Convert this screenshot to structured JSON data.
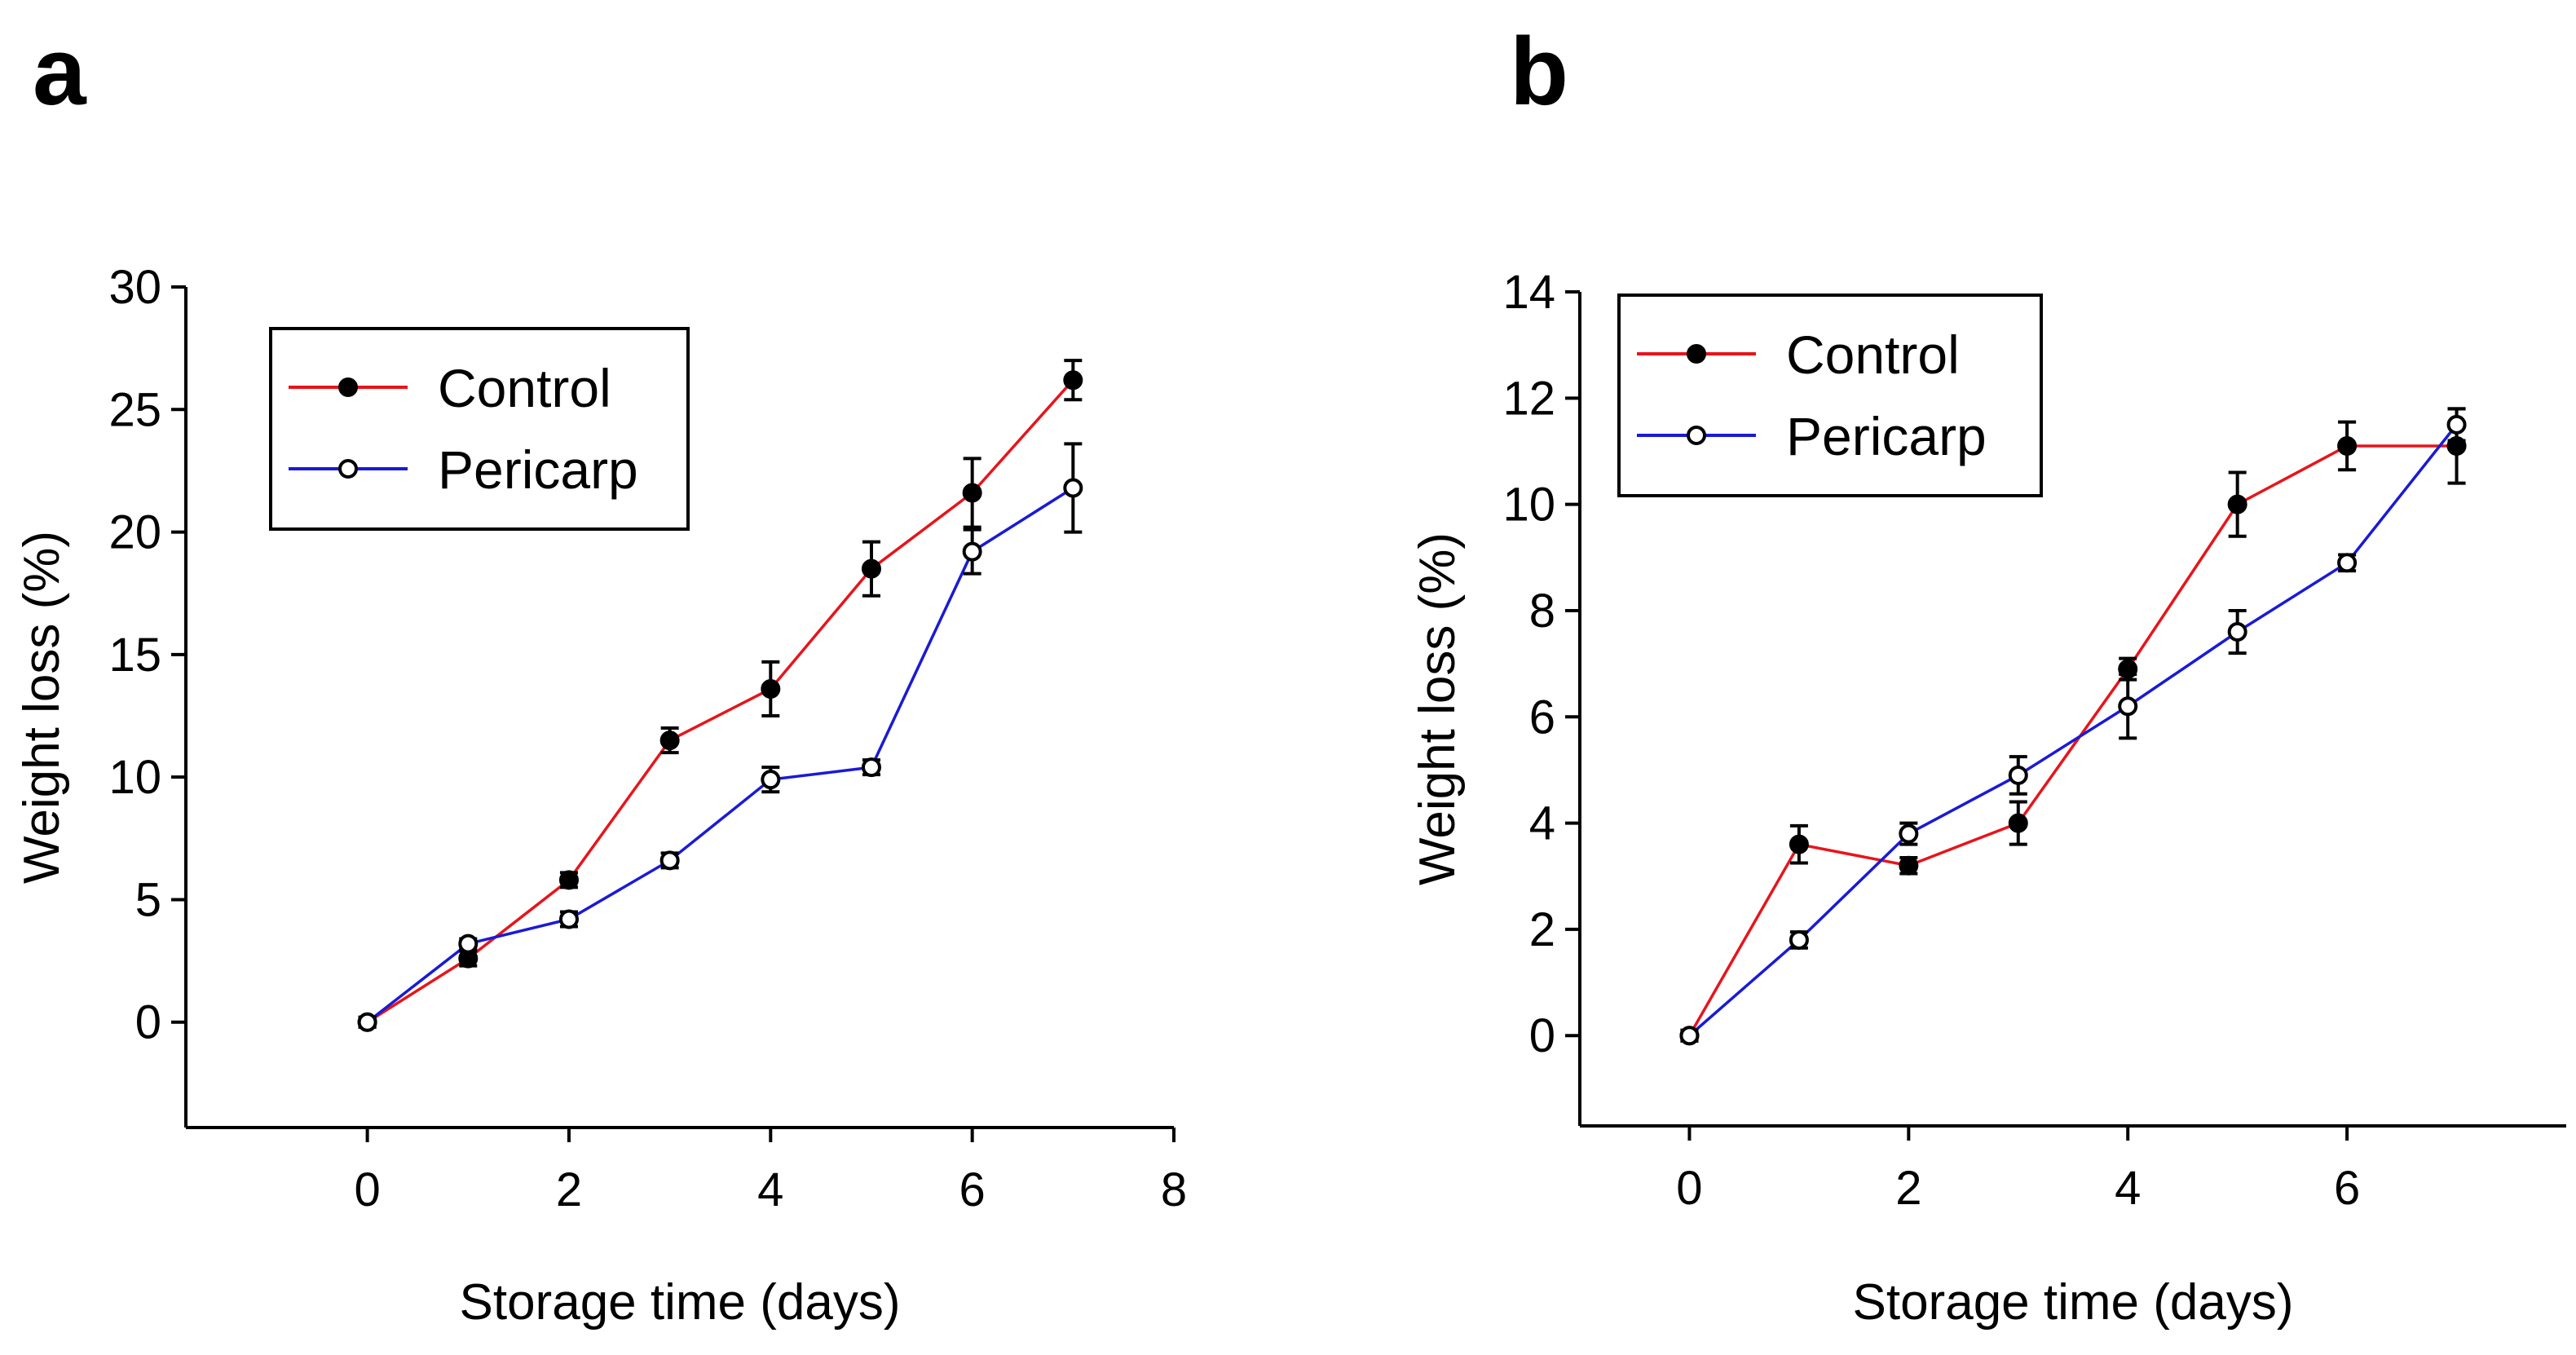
{
  "chart_data": [
    {
      "panel": "a",
      "type": "line",
      "xlabel": "Storage time (days)",
      "ylabel": "Weight loss (%)",
      "xlim": [
        -1.8,
        8
      ],
      "ylim": [
        -4.3,
        30
      ],
      "xticks": [
        0,
        2,
        4,
        6,
        8
      ],
      "yticks": [
        0,
        5,
        10,
        15,
        20,
        25,
        30
      ],
      "legend": "top-left",
      "series": [
        {
          "name": "Control",
          "color": "#e8141b",
          "marker": "filled",
          "x": [
            0,
            1,
            2,
            3,
            4,
            5,
            6,
            7
          ],
          "y": [
            0,
            2.6,
            5.8,
            11.5,
            13.6,
            18.5,
            21.6,
            26.2
          ],
          "err": [
            0.2,
            0.3,
            0.3,
            0.5,
            1.1,
            1.1,
            1.4,
            0.8
          ]
        },
        {
          "name": "Pericarp",
          "color": "#1a1ad6",
          "marker": "open",
          "x": [
            0,
            1,
            2,
            3,
            4,
            5,
            6,
            7
          ],
          "y": [
            0,
            3.2,
            4.2,
            6.6,
            9.9,
            10.4,
            19.2,
            21.8
          ],
          "err": [
            0.2,
            0.2,
            0.3,
            0.3,
            0.5,
            0.3,
            0.9,
            1.8
          ]
        }
      ]
    },
    {
      "panel": "b",
      "type": "line",
      "xlabel": "Storage time (days)",
      "ylabel": "Weight loss (%)",
      "xlim": [
        -1.0,
        8.0
      ],
      "ylim": [
        -1.7,
        14
      ],
      "xticks": [
        0,
        2,
        4,
        6
      ],
      "yticks": [
        0,
        2,
        4,
        6,
        8,
        10,
        12,
        14
      ],
      "legend": "top-left",
      "series": [
        {
          "name": "Control",
          "color": "#e8141b",
          "marker": "filled",
          "x": [
            0,
            1,
            2,
            3,
            4,
            5,
            6,
            7
          ],
          "y": [
            0,
            3.6,
            3.2,
            4.0,
            6.9,
            10.0,
            11.1,
            11.1
          ],
          "err": [
            0.1,
            0.35,
            0.15,
            0.4,
            0.2,
            0.6,
            0.45,
            0.7
          ]
        },
        {
          "name": "Pericarp",
          "color": "#1a1ad6",
          "marker": "open",
          "x": [
            0,
            1,
            2,
            3,
            4,
            5,
            6,
            7
          ],
          "y": [
            0,
            1.8,
            3.8,
            4.9,
            6.2,
            7.6,
            8.9,
            11.5
          ],
          "err": [
            0.1,
            0.15,
            0.2,
            0.35,
            0.6,
            0.4,
            0.15,
            0.3
          ]
        }
      ]
    }
  ]
}
